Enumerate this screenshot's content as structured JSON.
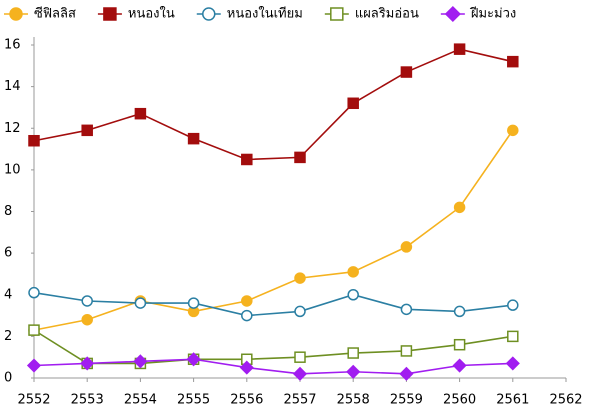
{
  "chart_data": {
    "type": "line",
    "x": [
      2552,
      2553,
      2554,
      2555,
      2556,
      2557,
      2558,
      2559,
      2560,
      2561
    ],
    "series": [
      {
        "name": "ซีฟิลลิส",
        "color": "#f5b21f",
        "marker": "circle",
        "values": [
          2.3,
          2.8,
          3.7,
          3.2,
          3.7,
          4.8,
          5.1,
          6.3,
          8.2,
          11.9
        ]
      },
      {
        "name": "หนองใน",
        "color": "#a30d0d",
        "marker": "square",
        "values": [
          11.4,
          11.9,
          12.7,
          11.5,
          10.5,
          10.6,
          13.2,
          14.7,
          15.8,
          15.2
        ]
      },
      {
        "name": "หนองในเทียม",
        "color": "#2b7fa3",
        "marker": "circle-open",
        "values": [
          4.1,
          3.7,
          3.6,
          3.6,
          3.0,
          3.2,
          4.0,
          3.3,
          3.2,
          3.5
        ]
      },
      {
        "name": "แผลริมอ่อน",
        "color": "#6e8f22",
        "marker": "square-open",
        "values": [
          2.3,
          0.7,
          0.7,
          0.9,
          0.9,
          1.0,
          1.2,
          1.3,
          1.6,
          2.0
        ]
      },
      {
        "name": "ฝีมะม่วง",
        "color": "#a11df0",
        "marker": "diamond",
        "values": [
          0.6,
          0.7,
          0.8,
          0.9,
          0.5,
          0.2,
          0.3,
          0.2,
          0.6,
          0.7
        ]
      }
    ],
    "xlim": [
      2552,
      2562
    ],
    "xticks": [
      2552,
      2553,
      2554,
      2555,
      2556,
      2557,
      2558,
      2559,
      2560,
      2561,
      2562
    ],
    "ylim": [
      0,
      16
    ],
    "yticks": [
      0,
      2,
      4,
      6,
      8,
      10,
      12,
      14,
      16
    ],
    "grid": false,
    "legend": "top"
  }
}
